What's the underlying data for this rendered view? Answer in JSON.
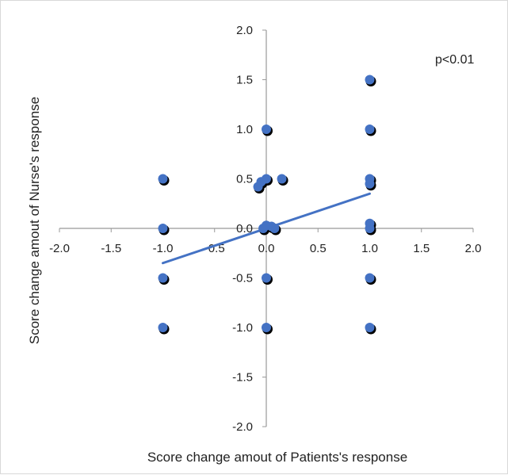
{
  "chart_data": {
    "type": "scatter",
    "title": "",
    "xlabel": "Score change amout of Patients's response",
    "ylabel": "Score change amout of Nurse's response",
    "xlim": [
      -2.0,
      2.0
    ],
    "ylim": [
      -2.0,
      2.0
    ],
    "x_ticks": [
      "-2.0",
      "-1.5",
      "-1.0",
      "-0.5",
      "0.0",
      "0.5",
      "1.0",
      "1.5",
      "2.0"
    ],
    "y_ticks": [
      "2.0",
      "1.5",
      "1.0",
      "0.5",
      "0.0",
      "-0.5",
      "-1.0",
      "-1.5",
      "-2.0"
    ],
    "annotation": "p<0.01",
    "grid": false,
    "legend": "none",
    "colors": {
      "points": "#4472C4",
      "trendline": "#4472C4",
      "shadow": "#000000",
      "axes": "#999999"
    },
    "points": [
      {
        "x": -1.0,
        "y": 0.5
      },
      {
        "x": -1.0,
        "y": 0.0
      },
      {
        "x": -1.0,
        "y": -0.5
      },
      {
        "x": -1.0,
        "y": -1.0
      },
      {
        "x": 0.0,
        "y": 1.0
      },
      {
        "x": 0.0,
        "y": 0.5
      },
      {
        "x": -0.05,
        "y": 0.47
      },
      {
        "x": -0.08,
        "y": 0.42
      },
      {
        "x": 0.15,
        "y": 0.5
      },
      {
        "x": 0.0,
        "y": 0.03
      },
      {
        "x": -0.03,
        "y": 0.0
      },
      {
        "x": 0.05,
        "y": 0.02
      },
      {
        "x": 0.08,
        "y": 0.0
      },
      {
        "x": 0.0,
        "y": -0.5
      },
      {
        "x": 0.0,
        "y": -1.0
      },
      {
        "x": 1.0,
        "y": 1.5
      },
      {
        "x": 1.0,
        "y": 1.0
      },
      {
        "x": 1.0,
        "y": 0.5
      },
      {
        "x": 1.0,
        "y": 0.45
      },
      {
        "x": 1.0,
        "y": 0.05
      },
      {
        "x": 1.0,
        "y": 0.0
      },
      {
        "x": 1.0,
        "y": -0.5
      },
      {
        "x": 1.0,
        "y": -1.0
      }
    ],
    "trendline": {
      "x": [
        -1.0,
        1.0
      ],
      "y": [
        -0.35,
        0.35
      ]
    }
  }
}
